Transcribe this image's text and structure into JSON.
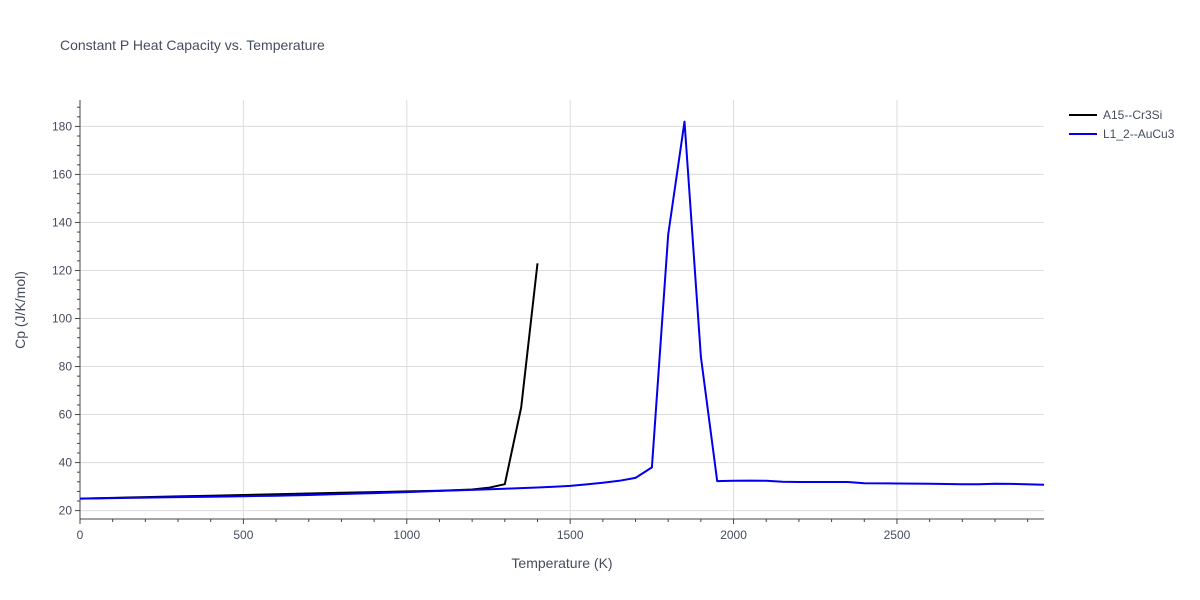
{
  "chart_data": {
    "type": "line",
    "title": "Constant P Heat Capacity vs. Temperature",
    "xlabel": "Temperature (K)",
    "ylabel": "Cp (J/K/mol)",
    "xlim": [
      0,
      2950
    ],
    "ylim": [
      16.5,
      191
    ],
    "x_ticks": [
      0,
      500,
      1000,
      1500,
      2000,
      2500
    ],
    "y_ticks": [
      20,
      40,
      60,
      80,
      100,
      120,
      140,
      160,
      180
    ],
    "grid": true,
    "legend_position": "top-right",
    "series": [
      {
        "name": "A15--Cr3Si",
        "color": "#000000",
        "x": [
          0,
          100,
          200,
          300,
          400,
          500,
          600,
          700,
          800,
          900,
          1000,
          1100,
          1200,
          1250,
          1300,
          1350,
          1400
        ],
        "y": [
          25.0,
          25.3,
          25.6,
          25.9,
          26.2,
          26.5,
          26.8,
          27.1,
          27.4,
          27.7,
          28.0,
          28.3,
          28.8,
          29.5,
          31.0,
          63.0,
          123.0
        ]
      },
      {
        "name": "L1_2--AuCu3",
        "color": "#0000ee",
        "x": [
          0,
          100,
          200,
          300,
          400,
          500,
          600,
          700,
          800,
          900,
          1000,
          1100,
          1200,
          1300,
          1400,
          1450,
          1500,
          1550,
          1600,
          1650,
          1700,
          1750,
          1800,
          1850,
          1900,
          1950,
          2000,
          2050,
          2100,
          2150,
          2200,
          2300,
          2350,
          2400,
          2500,
          2600,
          2700,
          2750,
          2800,
          2850,
          2950
        ],
        "y": [
          25.0,
          25.2,
          25.4,
          25.6,
          25.8,
          26.0,
          26.2,
          26.5,
          26.9,
          27.3,
          27.7,
          28.2,
          28.6,
          29.1,
          29.6,
          29.9,
          30.3,
          30.9,
          31.6,
          32.4,
          33.6,
          38.0,
          135.0,
          182.0,
          84.0,
          32.3,
          32.4,
          32.5,
          32.4,
          32.0,
          31.9,
          31.9,
          31.9,
          31.4,
          31.3,
          31.2,
          31.0,
          31.0,
          31.2,
          31.1,
          30.8
        ]
      }
    ]
  }
}
